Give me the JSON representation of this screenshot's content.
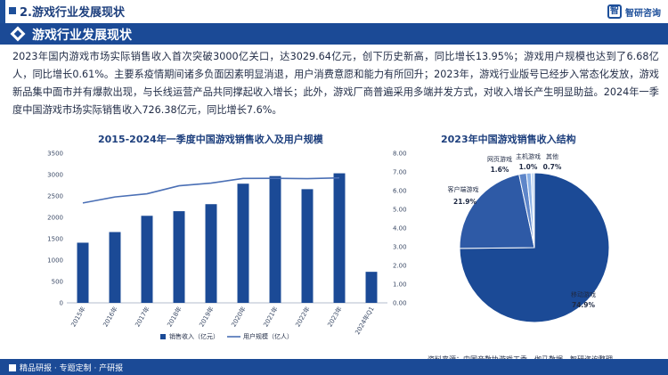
{
  "header": {
    "section_title": "2.游戏行业发展现状",
    "logo_text": "智研咨询"
  },
  "banner": {
    "title": "游戏行业发展现状"
  },
  "paragraph": "2023年国内游戏市场实际销售收入首次突破3000亿关口，达3029.64亿元，创下历史新高，同比增长13.95%；游戏用户规模也达到了6.68亿人，同比增长0.61%。主要系疫情期间诸多负面因素明显消退，用户消费意愿和能力有所回升；2023年，游戏行业版号已经步入常态化发放，游戏新品集中面市并有爆款出现，与长线运营产品共同撑起收入增长；此外，游戏厂商普遍采用多端并发方式，对收入增长产生明显助益。2024年一季度中国游戏市场实际销售收入726.38亿元，同比增长7.6%。",
  "footer": {
    "left_text": "精品研报 · 专题定制 · 产研报",
    "source": "资料来源：中国音数协游戏工委、伽马数据、智研咨询整理"
  },
  "chart_data": [
    {
      "type": "bar",
      "title": "2015-2024年一季度中国游戏销售收入及用户规模",
      "categories": [
        "2015年",
        "2016年",
        "2017年",
        "2018年",
        "2019年",
        "2020年",
        "2021年",
        "2022年",
        "2023年",
        "2024年Q1"
      ],
      "series": [
        {
          "name": "销售收入（亿元）",
          "type": "bar",
          "axis": "left",
          "values": [
            1407,
            1656,
            2036,
            2144,
            2308,
            2787,
            2965,
            2659,
            3030,
            726
          ]
        },
        {
          "name": "用户规模（亿人）",
          "type": "line",
          "axis": "right",
          "values": [
            5.34,
            5.66,
            5.83,
            6.26,
            6.4,
            6.65,
            6.66,
            6.64,
            6.68,
            null
          ]
        }
      ],
      "ylim_left": [
        0,
        3500
      ],
      "yticks_left": [
        0,
        500,
        1000,
        1500,
        2000,
        2500,
        3000,
        3500
      ],
      "ylim_right": [
        0,
        8
      ],
      "yticks_right": [
        "0.00",
        "1.00",
        "2.00",
        "3.00",
        "4.00",
        "5.00",
        "6.00",
        "7.00",
        "8.00"
      ],
      "legend": "bottom",
      "colors": {
        "bar": "#1b4a96",
        "line": "#4a6fb5"
      }
    },
    {
      "type": "pie",
      "title": "2023年中国游戏销售收入结构",
      "slices": [
        {
          "label": "移动游戏",
          "value": 74.9,
          "pct": "74.9%",
          "color": "#1b4a96"
        },
        {
          "label": "客户端游戏",
          "value": 21.9,
          "pct": "21.9%",
          "color": "#2e5aa6"
        },
        {
          "label": "网页游戏",
          "value": 1.6,
          "pct": "1.6%",
          "color": "#5e86c9"
        },
        {
          "label": "主机游戏",
          "value": 1.0,
          "pct": "1.0%",
          "color": "#8cb2e6"
        },
        {
          "label": "其他",
          "value": 0.7,
          "pct": "0.7%",
          "color": "#c9dcf4"
        }
      ]
    }
  ]
}
